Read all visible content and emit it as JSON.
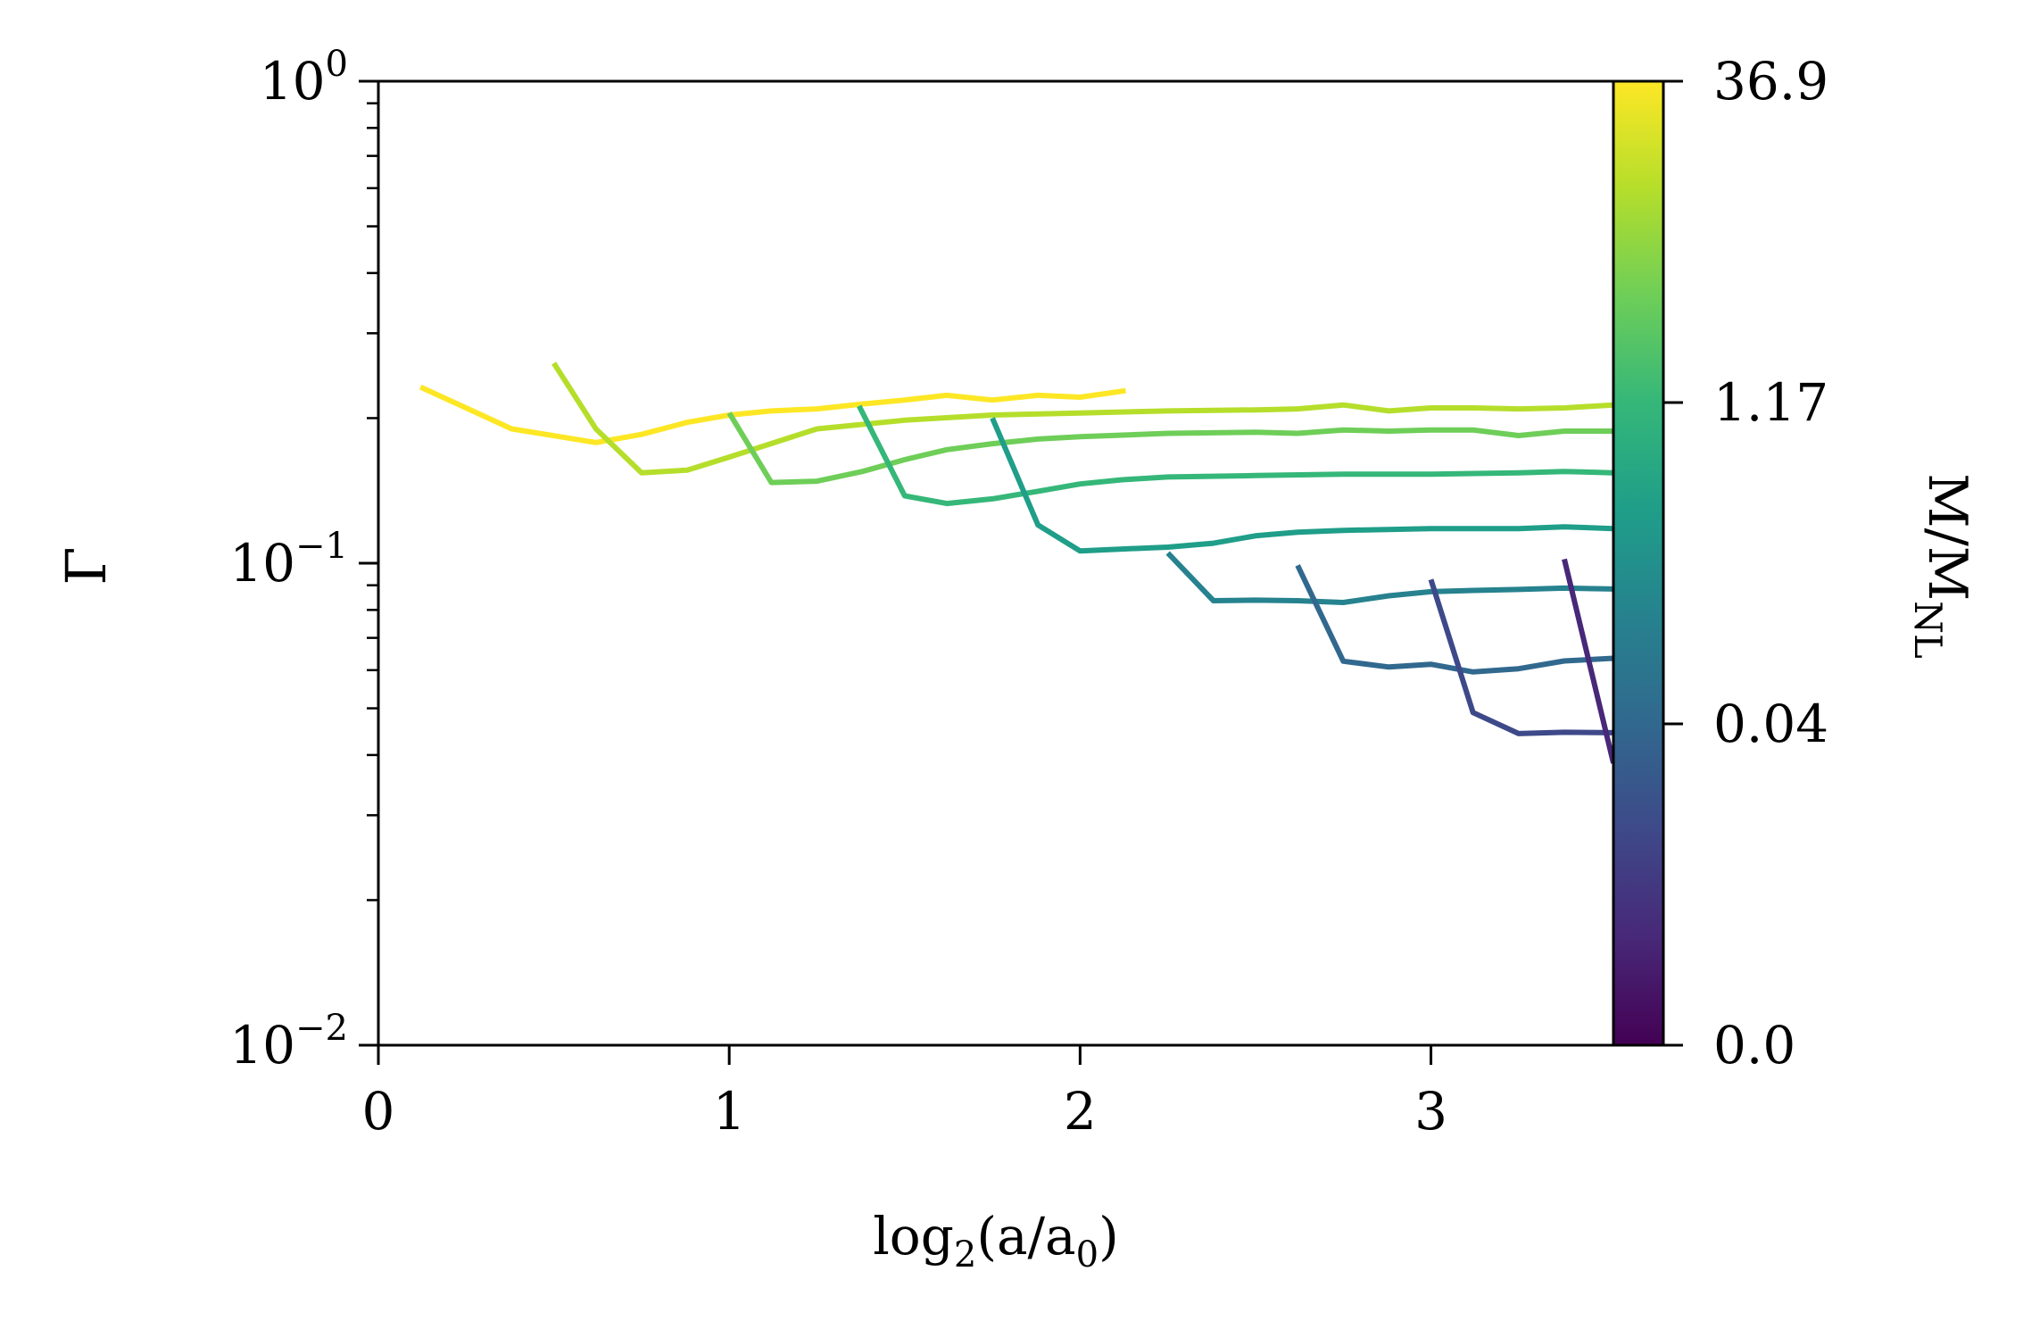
{
  "chart_data": {
    "type": "line",
    "xlabel": "log",
    "xlabel_sub": "2",
    "xlabel_mid": "(a/a",
    "xlabel_sub2": "0",
    "xlabel_end": ")",
    "ylabel": "Γ",
    "yscale": "log",
    "xlim": [
      0,
      3.52
    ],
    "ylim": [
      0.01,
      1.0
    ],
    "x_ticks": [
      0,
      1,
      2,
      3
    ],
    "x_tick_labels": [
      "0",
      "1",
      "2",
      "3"
    ],
    "y_ticks": [
      {
        "value": 1.0,
        "base": "10",
        "exp": "0"
      },
      {
        "value": 0.1,
        "base": "10",
        "exp": "−1"
      },
      {
        "value": 0.01,
        "base": "10",
        "exp": "−2"
      }
    ],
    "colorbar": {
      "label_main": "M/M",
      "label_sub": "NL",
      "colormap": "viridis",
      "tick_labels": [
        "0.0",
        "0.04",
        "1.17",
        "36.9"
      ],
      "colors": [
        "#440154",
        "#482878",
        "#3e4989",
        "#31688e",
        "#26828e",
        "#1f9e89",
        "#35b779",
        "#6ece58",
        "#b5de2b",
        "#fde725"
      ]
    },
    "series": [
      {
        "color": "#fde725",
        "x": [
          0.12,
          0.38,
          0.62,
          0.75,
          0.88,
          1.0,
          1.12,
          1.25,
          1.38,
          1.5,
          1.62,
          1.75,
          1.88,
          2.0,
          2.13
        ],
        "y": [
          0.232,
          0.19,
          0.178,
          0.185,
          0.196,
          0.203,
          0.207,
          0.209,
          0.214,
          0.218,
          0.223,
          0.218,
          0.223,
          0.221,
          0.228
        ]
      },
      {
        "color": "#b5de2b",
        "x": [
          0.5,
          0.62,
          0.75,
          0.88,
          1.0,
          1.25,
          1.5,
          1.75,
          2.0,
          2.25,
          2.5,
          2.62,
          2.75,
          2.88,
          3.0,
          3.12,
          3.25,
          3.38,
          3.52
        ],
        "y": [
          0.26,
          0.19,
          0.154,
          0.156,
          0.166,
          0.19,
          0.198,
          0.203,
          0.205,
          0.207,
          0.208,
          0.209,
          0.213,
          0.207,
          0.21,
          0.21,
          0.209,
          0.21,
          0.213
        ]
      },
      {
        "color": "#6ece58",
        "x": [
          1.0,
          1.12,
          1.25,
          1.38,
          1.5,
          1.62,
          1.75,
          1.88,
          2.0,
          2.25,
          2.5,
          2.62,
          2.75,
          2.88,
          3.0,
          3.12,
          3.25,
          3.38,
          3.52
        ],
        "y": [
          0.205,
          0.147,
          0.148,
          0.155,
          0.164,
          0.172,
          0.177,
          0.181,
          0.183,
          0.186,
          0.187,
          0.186,
          0.189,
          0.188,
          0.189,
          0.189,
          0.184,
          0.188,
          0.188
        ]
      },
      {
        "color": "#35b779",
        "x": [
          1.37,
          1.5,
          1.62,
          1.75,
          1.88,
          2.0,
          2.12,
          2.25,
          2.5,
          2.75,
          3.0,
          3.25,
          3.38,
          3.52
        ],
        "y": [
          0.212,
          0.138,
          0.133,
          0.136,
          0.141,
          0.146,
          0.149,
          0.151,
          0.152,
          0.153,
          0.153,
          0.154,
          0.155,
          0.154
        ]
      },
      {
        "color": "#1f9e89",
        "x": [
          1.75,
          1.88,
          2.0,
          2.12,
          2.25,
          2.38,
          2.5,
          2.62,
          2.75,
          3.0,
          3.25,
          3.38,
          3.52
        ],
        "y": [
          0.2,
          0.12,
          0.106,
          0.107,
          0.108,
          0.11,
          0.114,
          0.116,
          0.117,
          0.118,
          0.118,
          0.119,
          0.118
        ]
      },
      {
        "color": "#26828e",
        "x": [
          2.25,
          2.38,
          2.5,
          2.62,
          2.75,
          2.88,
          3.0,
          3.12,
          3.25,
          3.38,
          3.52
        ],
        "y": [
          0.105,
          0.0836,
          0.0838,
          0.0836,
          0.0829,
          0.0856,
          0.0873,
          0.0878,
          0.0882,
          0.0888,
          0.0884
        ]
      },
      {
        "color": "#31688e",
        "x": [
          2.62,
          2.75,
          2.88,
          3.0,
          3.12,
          3.25,
          3.38,
          3.52
        ],
        "y": [
          0.099,
          0.0626,
          0.0609,
          0.0617,
          0.0595,
          0.0604,
          0.0627,
          0.0635
        ]
      },
      {
        "color": "#3e4989",
        "x": [
          3.0,
          3.12,
          3.25,
          3.38,
          3.52
        ],
        "y": [
          0.0925,
          0.049,
          0.0443,
          0.0446,
          0.0445
        ]
      },
      {
        "color": "#482878",
        "x": [
          3.38,
          3.52
        ],
        "y": [
          0.102,
          0.0385
        ]
      }
    ]
  }
}
